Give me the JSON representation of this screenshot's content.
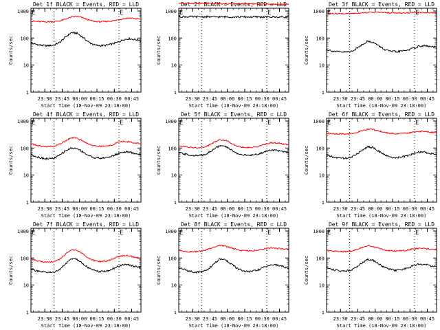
{
  "figure": {
    "panel_title_suffix": "BLACK = Events, RED = LLD",
    "y_label": "Counts/sec",
    "x_label": "Start Time (18-Nov-09 23:18:00)",
    "x_ticks": [
      "23:30",
      "23:45",
      "00:00",
      "00:15",
      "00:30",
      "00:45"
    ],
    "y_ticks": [
      "1",
      "10",
      "100",
      "1000"
    ],
    "marker": "E",
    "colors": {
      "events": "#000000",
      "lld": "#ff0000",
      "background": "#ffffff"
    }
  },
  "chart_data": [
    {
      "type": "line",
      "title": "Det 1f BLACK = Events, RED = LLD",
      "xlabel": "Start Time (18-Nov-09 23:18:00)",
      "ylabel": "Counts/sec",
      "yscale": "log",
      "ylim": [
        1,
        1000
      ],
      "xlim_minutes": [
        0,
        95
      ],
      "marker_lines_minutes": [
        20,
        76
      ],
      "x_minutes": [
        0,
        5,
        10,
        15,
        20,
        25,
        30,
        35,
        40,
        45,
        50,
        55,
        60,
        65,
        70,
        75,
        80,
        85,
        90,
        95
      ],
      "series": [
        {
          "name": "Events",
          "color": "#000000",
          "values": [
            65,
            58,
            53,
            52,
            55,
            70,
            110,
            160,
            150,
            105,
            70,
            55,
            52,
            54,
            60,
            70,
            88,
            95,
            88,
            80
          ]
        },
        {
          "name": "LLD",
          "color": "#ff0000",
          "values": [
            420,
            410,
            400,
            400,
            405,
            430,
            500,
            600,
            630,
            560,
            460,
            410,
            400,
            410,
            430,
            470,
            520,
            560,
            520,
            490
          ]
        }
      ]
    },
    {
      "type": "line",
      "title": "Det 2f BLACK = Events, RED = LLD",
      "xlabel": "Start Time (18-Nov-09 23:18:00)",
      "ylabel": "Counts/sec",
      "yscale": "log",
      "ylim": [
        1,
        1000
      ],
      "xlim_minutes": [
        0,
        95
      ],
      "marker_lines_minutes": [
        20,
        76
      ],
      "x_minutes": [
        0,
        5,
        10,
        15,
        20,
        25,
        30,
        35,
        40,
        45,
        50,
        55,
        60,
        65,
        70,
        75,
        80,
        85,
        90,
        95
      ],
      "series": [
        {
          "name": "Events",
          "color": "#000000",
          "values": [
            620,
            615,
            612,
            610,
            610,
            608,
            607,
            606,
            605,
            604,
            603,
            602,
            601,
            600,
            600,
            600,
            600,
            600,
            600,
            600
          ]
        },
        {
          "name": "LLD",
          "color": "#ff0000",
          "values": [
            1950,
            1940,
            1930,
            1920,
            1900,
            1890,
            1880,
            1870,
            1860,
            1850,
            1840,
            1830,
            1820,
            1810,
            1800,
            1790,
            1790,
            1780,
            1780,
            1780
          ]
        }
      ]
    },
    {
      "type": "line",
      "title": "Det 3f BLACK = Events, RED = LLD",
      "xlabel": "Start Time (18-Nov-09 23:18:00)",
      "ylabel": "Counts/sec",
      "yscale": "log",
      "ylim": [
        1,
        1000
      ],
      "xlim_minutes": [
        0,
        95
      ],
      "marker_lines_minutes": [
        20,
        76
      ],
      "x_minutes": [
        0,
        5,
        10,
        15,
        20,
        25,
        30,
        35,
        40,
        45,
        50,
        55,
        60,
        65,
        70,
        75,
        80,
        85,
        90,
        95
      ],
      "series": [
        {
          "name": "Events",
          "color": "#000000",
          "values": [
            38,
            33,
            31,
            30,
            31,
            38,
            55,
            75,
            70,
            52,
            38,
            32,
            31,
            33,
            36,
            42,
            50,
            52,
            48,
            45
          ]
        },
        {
          "name": "LLD",
          "color": "#ff0000",
          "values": [
            820,
            800,
            790,
            800,
            810,
            830,
            850,
            880,
            900,
            890,
            870,
            860,
            850,
            850,
            860,
            870,
            880,
            880,
            870,
            860
          ]
        }
      ]
    },
    {
      "type": "line",
      "title": "Det 4f BLACK = Events, RED = LLD",
      "xlabel": "Start Time (18-Nov-09 23:18:00)",
      "ylabel": "Counts/sec",
      "yscale": "log",
      "ylim": [
        1,
        1000
      ],
      "xlim_minutes": [
        0,
        95
      ],
      "marker_lines_minutes": [
        20,
        76
      ],
      "x_minutes": [
        0,
        5,
        10,
        15,
        20,
        25,
        30,
        35,
        40,
        45,
        50,
        55,
        60,
        65,
        70,
        75,
        80,
        85,
        90,
        95
      ],
      "series": [
        {
          "name": "Events",
          "color": "#000000",
          "values": [
            58,
            48,
            42,
            40,
            42,
            55,
            80,
            100,
            95,
            72,
            52,
            44,
            42,
            44,
            50,
            62,
            72,
            70,
            62,
            58
          ]
        },
        {
          "name": "LLD",
          "color": "#ff0000",
          "values": [
            145,
            125,
            115,
            112,
            118,
            140,
            190,
            240,
            230,
            180,
            140,
            120,
            115,
            118,
            130,
            160,
            175,
            170,
            155,
            148
          ]
        }
      ]
    },
    {
      "type": "line",
      "title": "Det 5f BLACK = Events, RED = LLD",
      "xlabel": "Start Time (18-Nov-09 23:18:00)",
      "ylabel": "Counts/sec",
      "yscale": "log",
      "ylim": [
        1,
        1000
      ],
      "xlim_minutes": [
        0,
        95
      ],
      "marker_lines_minutes": [
        20,
        76
      ],
      "x_minutes": [
        0,
        5,
        10,
        15,
        20,
        25,
        30,
        35,
        40,
        45,
        50,
        55,
        60,
        65,
        70,
        75,
        80,
        85,
        90,
        95
      ],
      "series": [
        {
          "name": "Events",
          "color": "#000000",
          "values": [
            68,
            60,
            55,
            52,
            54,
            65,
            90,
            120,
            115,
            88,
            65,
            56,
            53,
            56,
            62,
            75,
            85,
            82,
            72,
            68
          ]
        },
        {
          "name": "LLD",
          "color": "#ff0000",
          "values": [
            125,
            112,
            105,
            102,
            106,
            120,
            160,
            205,
            195,
            155,
            120,
            108,
            104,
            108,
            118,
            140,
            158,
            155,
            140,
            132
          ]
        }
      ]
    },
    {
      "type": "line",
      "title": "Det 6f BLACK = Events, RED = LLD",
      "xlabel": "Start Time (18-Nov-09 23:18:00)",
      "ylabel": "Counts/sec",
      "yscale": "log",
      "ylim": [
        1,
        1000
      ],
      "xlim_minutes": [
        0,
        95
      ],
      "marker_lines_minutes": [
        20,
        76
      ],
      "x_minutes": [
        0,
        5,
        10,
        15,
        20,
        25,
        30,
        35,
        40,
        45,
        50,
        55,
        60,
        65,
        70,
        75,
        80,
        85,
        90,
        95
      ],
      "series": [
        {
          "name": "Events",
          "color": "#000000",
          "values": [
            55,
            47,
            43,
            42,
            44,
            55,
            80,
            110,
            105,
            78,
            55,
            46,
            44,
            46,
            52,
            62,
            72,
            70,
            62,
            58
          ]
        },
        {
          "name": "LLD",
          "color": "#ff0000",
          "values": [
            360,
            340,
            330,
            330,
            340,
            370,
            430,
            490,
            480,
            430,
            380,
            350,
            340,
            345,
            360,
            390,
            410,
            405,
            385,
            375
          ]
        }
      ]
    },
    {
      "type": "line",
      "title": "Det 7f BLACK = Events, RED = LLD",
      "xlabel": "Start Time (18-Nov-09 23:18:00)",
      "ylabel": "Counts/sec",
      "yscale": "log",
      "ylim": [
        1,
        1000
      ],
      "xlim_minutes": [
        0,
        95
      ],
      "marker_lines_minutes": [
        20,
        76
      ],
      "x_minutes": [
        0,
        5,
        10,
        15,
        20,
        25,
        30,
        35,
        40,
        45,
        50,
        55,
        60,
        65,
        70,
        75,
        80,
        85,
        90,
        95
      ],
      "series": [
        {
          "name": "Events",
          "color": "#000000",
          "values": [
            40,
            33,
            30,
            29,
            30,
            38,
            60,
            95,
            90,
            62,
            42,
            34,
            31,
            33,
            38,
            48,
            58,
            55,
            48,
            44
          ]
        },
        {
          "name": "LLD",
          "color": "#ff0000",
          "values": [
            95,
            80,
            72,
            70,
            74,
            90,
            140,
            200,
            190,
            140,
            95,
            80,
            74,
            78,
            90,
            110,
            125,
            120,
            105,
            98
          ]
        }
      ]
    },
    {
      "type": "line",
      "title": "Det 8f BLACK = Events, RED = LLD",
      "xlabel": "Start Time (18-Nov-09 23:18:00)",
      "ylabel": "Counts/sec",
      "yscale": "log",
      "ylim": [
        1,
        1000
      ],
      "xlim_minutes": [
        0,
        95
      ],
      "marker_lines_minutes": [
        20,
        76
      ],
      "x_minutes": [
        0,
        5,
        10,
        15,
        20,
        25,
        30,
        35,
        40,
        45,
        50,
        55,
        60,
        65,
        70,
        75,
        80,
        85,
        90,
        95
      ],
      "series": [
        {
          "name": "Events",
          "color": "#000000",
          "values": [
            45,
            37,
            32,
            30,
            31,
            38,
            58,
            90,
            88,
            62,
            42,
            34,
            31,
            33,
            38,
            48,
            56,
            55,
            48,
            44
          ]
        },
        {
          "name": "LLD",
          "color": "#ff0000",
          "values": [
            190,
            175,
            170,
            172,
            180,
            210,
            250,
            290,
            280,
            240,
            205,
            190,
            185,
            190,
            200,
            220,
            235,
            230,
            215,
            210
          ]
        }
      ]
    },
    {
      "type": "line",
      "title": "Det 9f BLACK = Events, RED = LLD",
      "xlabel": "Start Time (18-Nov-09 23:18:00)",
      "ylabel": "Counts/sec",
      "yscale": "log",
      "ylim": [
        1,
        1000
      ],
      "xlim_minutes": [
        0,
        95
      ],
      "marker_lines_minutes": [
        20,
        76
      ],
      "x_minutes": [
        0,
        5,
        10,
        15,
        20,
        25,
        30,
        35,
        40,
        45,
        50,
        55,
        60,
        65,
        70,
        75,
        80,
        85,
        90,
        95
      ],
      "series": [
        {
          "name": "Events",
          "color": "#000000",
          "values": [
            45,
            38,
            34,
            33,
            35,
            44,
            65,
            88,
            84,
            62,
            45,
            38,
            35,
            37,
            42,
            52,
            60,
            58,
            52,
            48
          ]
        },
        {
          "name": "LLD",
          "color": "#ff0000",
          "values": [
            190,
            178,
            172,
            172,
            178,
            200,
            240,
            280,
            270,
            230,
            200,
            188,
            182,
            186,
            196,
            215,
            230,
            225,
            210,
            205
          ]
        }
      ]
    }
  ]
}
